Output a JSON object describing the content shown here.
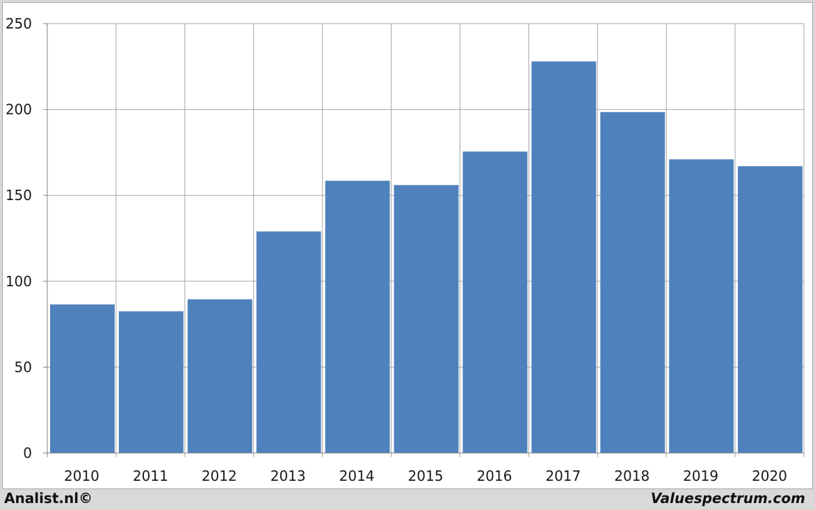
{
  "chart_data": {
    "type": "bar",
    "title": "",
    "xlabel": "",
    "ylabel": "",
    "categories": [
      "2010",
      "2011",
      "2012",
      "2013",
      "2014",
      "2015",
      "2016",
      "2017",
      "2018",
      "2019",
      "2020"
    ],
    "values": [
      86.5,
      82.5,
      89.5,
      129,
      158.5,
      156,
      175.5,
      228,
      198.5,
      171,
      167
    ],
    "ylim": [
      0,
      250
    ],
    "yticks": [
      0,
      50,
      100,
      150,
      200,
      250
    ],
    "grid": true,
    "legend": "none",
    "bar_color": "#4f81bd"
  },
  "footer": {
    "left_text": "Analist.nl©",
    "right_text": "Valuespectrum.com"
  }
}
